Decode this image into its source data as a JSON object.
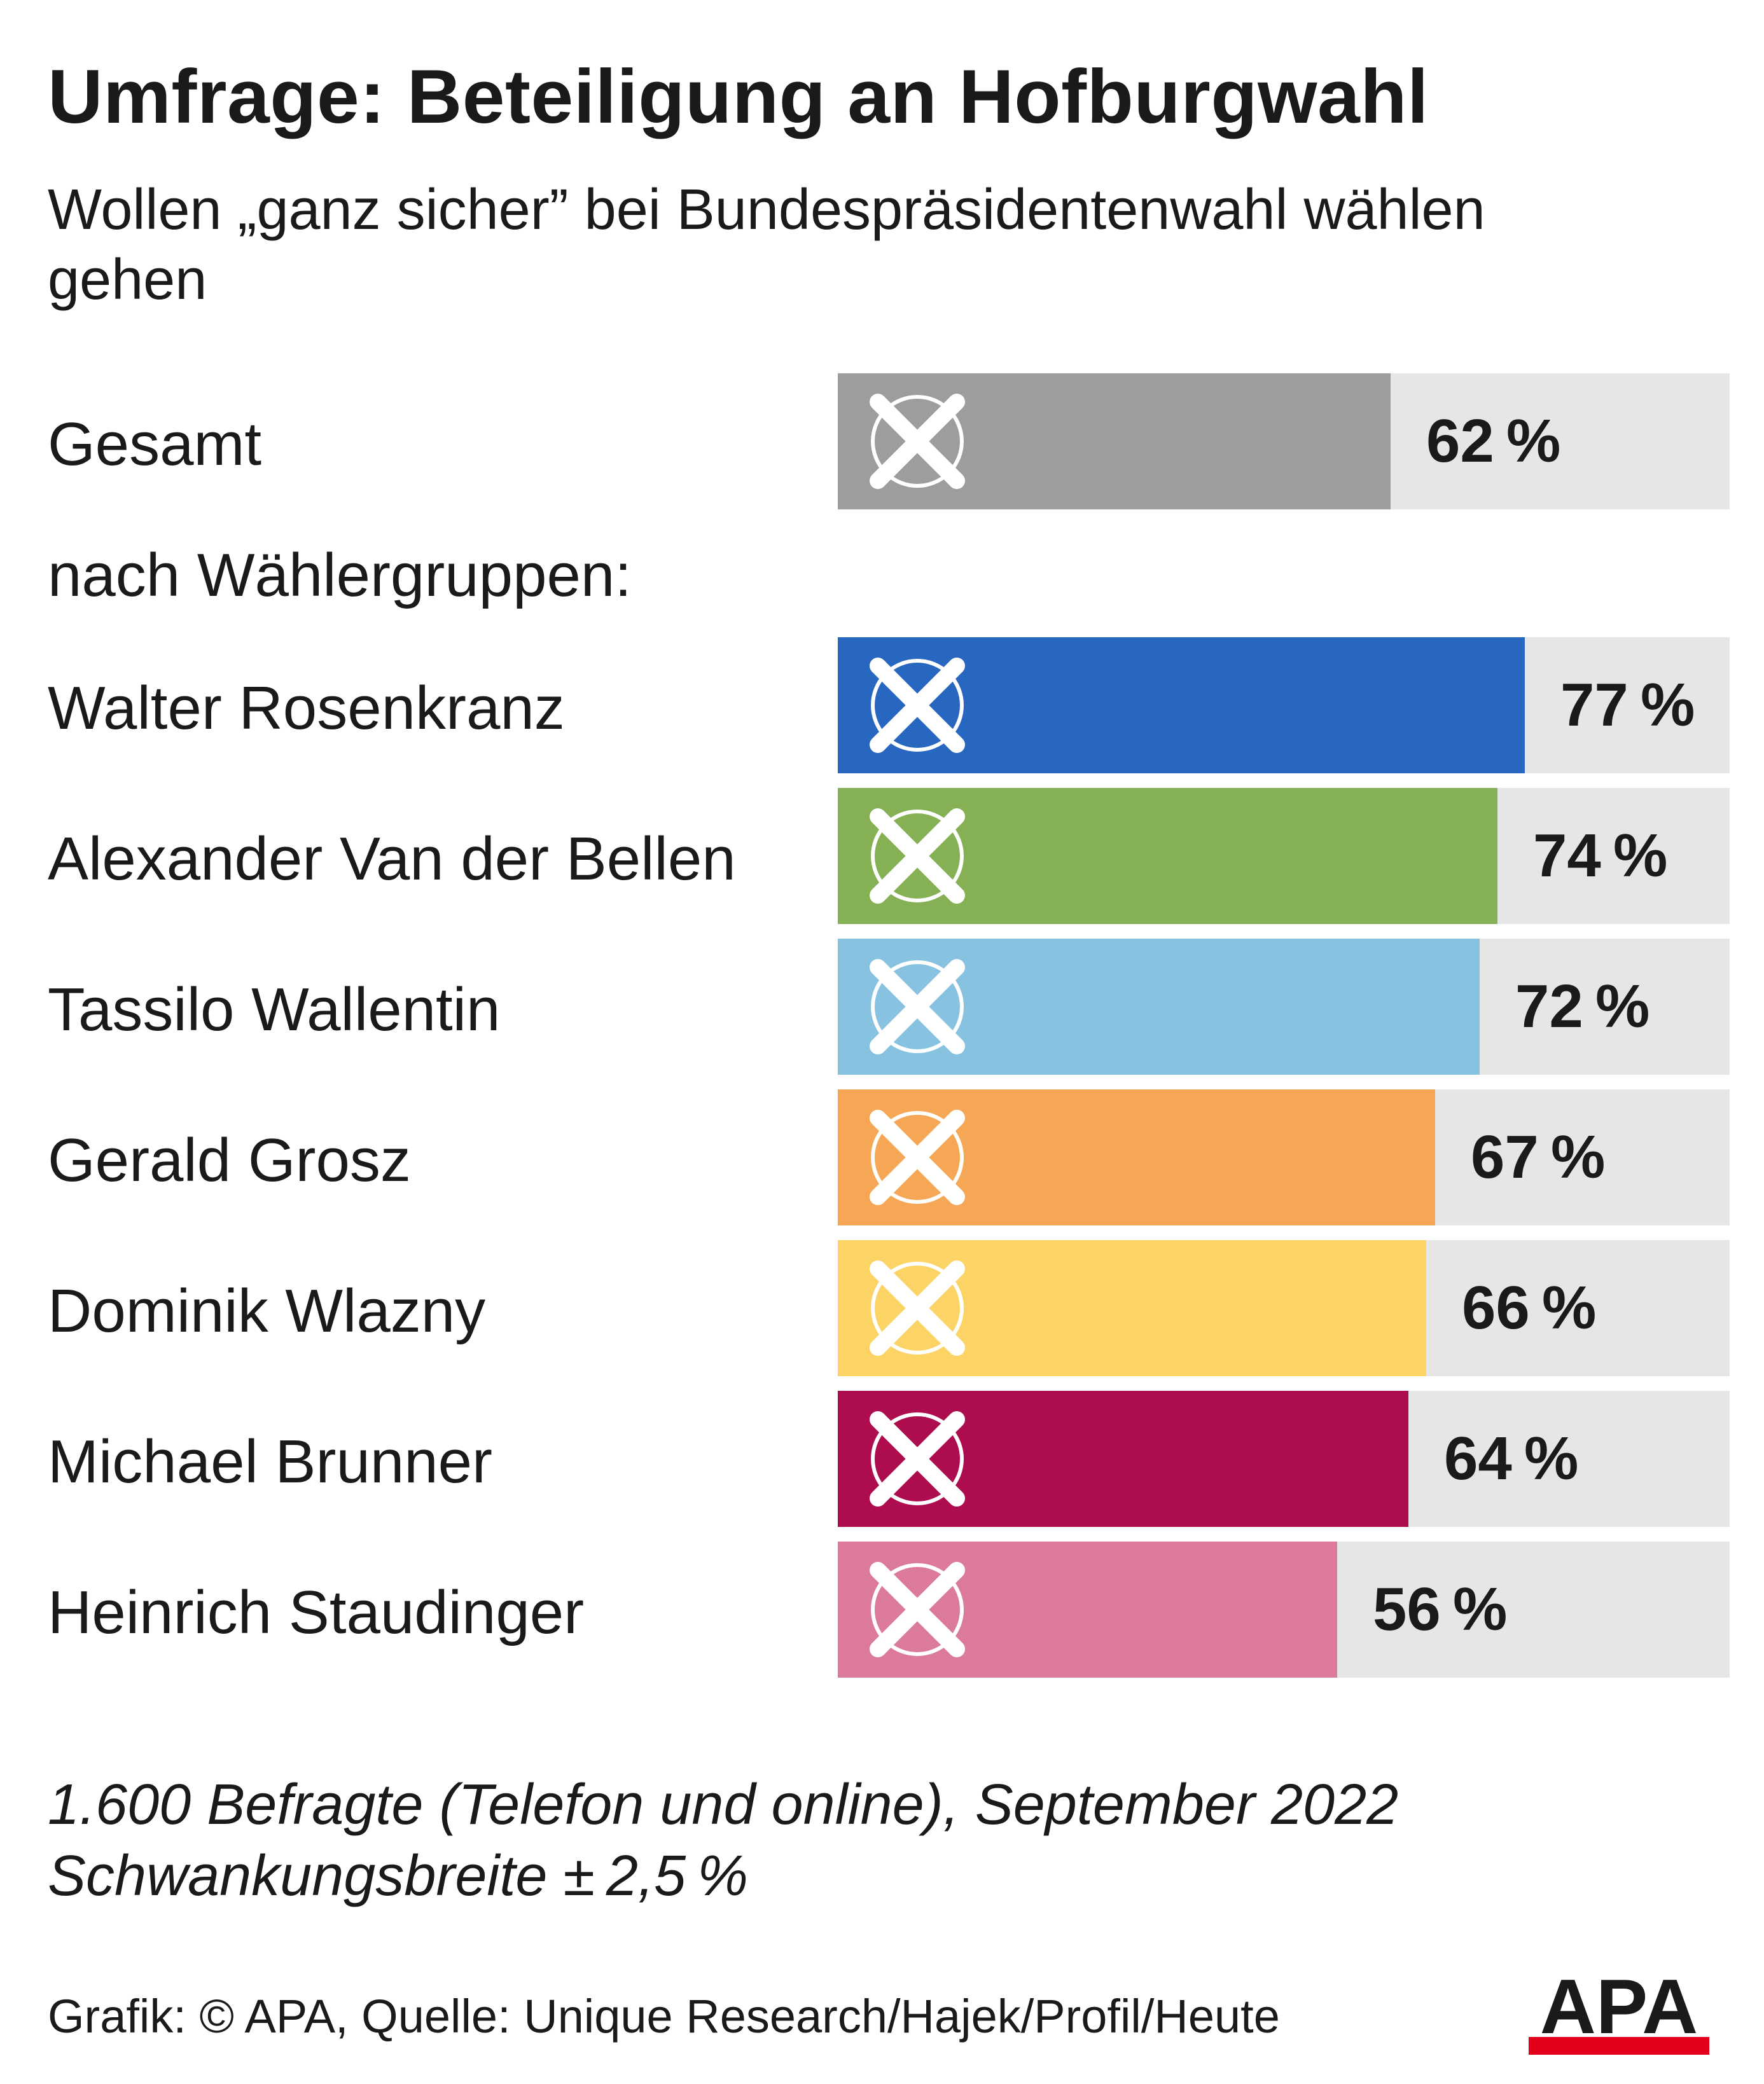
{
  "title": "Umfrage: Beteiligung an Hofburgwahl",
  "subtitle": "Wollen „ganz sicher” bei Bundespräsidentenwahl wählen gehen",
  "group_heading": "nach Wählergruppen:",
  "note_line1": "1.600 Befragte (Telefon und online), September 2022",
  "note_line2": "Schwankungsbreite ± 2,5 %",
  "source": "Grafik: © APA, Quelle: Unique Research/Hajek/Profil/Heute",
  "logo_text": "APA",
  "colors": {
    "track": "#e6e6e6",
    "logo_red": "#e2001a",
    "text": "#1a1a1a"
  },
  "icons": {
    "bar_icon": "ballot-cross-icon",
    "logo": "apa-logo"
  },
  "chart_data": {
    "type": "bar",
    "orientation": "horizontal",
    "xlim": [
      0,
      100
    ],
    "unit": "%",
    "categories": [
      "Gesamt",
      "Walter Rosenkranz",
      "Alexander Van der Bellen",
      "Tassilo Wallentin",
      "Gerald Grosz",
      "Dominik Wlazny",
      "Michael Brunner",
      "Heinrich Staudinger"
    ],
    "values": [
      62,
      77,
      74,
      72,
      67,
      66,
      64,
      56
    ],
    "value_labels": [
      "62 %",
      "77 %",
      "74 %",
      "72 %",
      "67 %",
      "66 %",
      "64 %",
      "56 %"
    ],
    "colors": [
      "#9d9d9d",
      "#2767bf",
      "#85b054",
      "#87c2e1",
      "#f5a755",
      "#fcd466",
      "#ad0c4f",
      "#db7a9d"
    ]
  }
}
